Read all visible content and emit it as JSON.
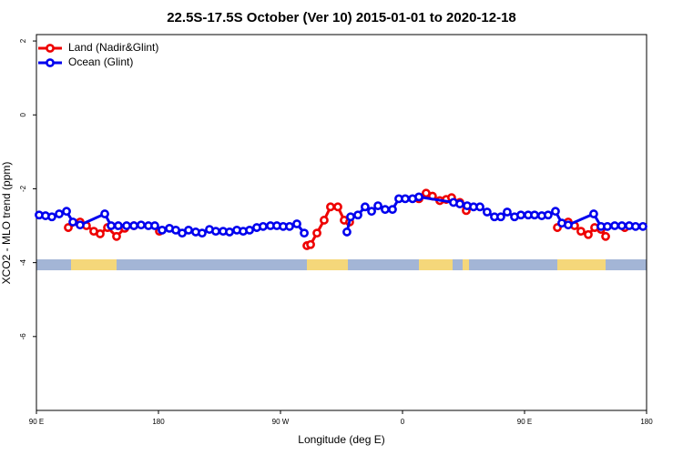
{
  "chart_data": {
    "type": "line",
    "title": "22.5S-17.5S October (Ver 10)   2015-01-01 to 2020-12-18",
    "x_label": "Longitude (deg E)",
    "y_label": "XCO2 - MLO trend (ppm)",
    "xlim": [
      90,
      540
    ],
    "xticks": [
      {
        "value": 90,
        "label": "90 E"
      },
      {
        "value": 180,
        "label": "180"
      },
      {
        "value": 270,
        "label": "90 W"
      },
      {
        "value": 360,
        "label": "0"
      },
      {
        "value": 450,
        "label": "90 E"
      },
      {
        "value": 540,
        "label": "180"
      }
    ],
    "ylim": [
      -8,
      2.1
    ],
    "yticks": [
      2,
      0,
      -2,
      -4,
      -6
    ],
    "legend": "top-left",
    "series": [
      {
        "name": "Land (Nadir&Glint)",
        "color": "#ee0000",
        "x": [
          113.5,
          122.2,
          126.9,
          132.3,
          137,
          142.4,
          149.1,
          155.1,
          161.9,
          null,
          180.7,
          null,
          289.5,
          292.2,
          296.9,
          302.2,
          306.9,
          312.3,
          317,
          321,
          null,
          372.1,
          377.4,
          382.1,
          387.5,
          392.2,
          396.2,
          402.3,
          407,
          null,
          474.2,
          482.2,
          486.9,
          491.6,
          497,
          501.7,
          506.4,
          509.8,
          null,
          523.9
        ],
        "values": [
          -3.05,
          -2.9,
          -3.0,
          -3.15,
          -3.22,
          -3.05,
          -3.29,
          -3.07,
          -3.0,
          null,
          -3.15,
          null,
          -3.54,
          -3.51,
          -3.2,
          -2.85,
          -2.49,
          -2.49,
          -2.85,
          -2.9,
          null,
          -2.27,
          -2.12,
          -2.2,
          -2.32,
          -2.29,
          -2.24,
          -2.37,
          -2.59,
          null,
          -3.05,
          -2.9,
          -3.0,
          -3.15,
          -3.24,
          -3.05,
          -3.1,
          -3.29,
          null,
          -3.05
        ]
      },
      {
        "name": "Ocean (Glint)",
        "color": "#0000ee",
        "x": [
          92,
          96.7,
          101.4,
          106.8,
          112.2,
          116.9,
          122.2,
          140.4,
          145.1,
          150.4,
          156.5,
          161.9,
          167.2,
          172.6,
          177.3,
          182.7,
          188.1,
          192.8,
          197.5,
          202.2,
          207.5,
          212.2,
          217.6,
          222.3,
          227.7,
          232.4,
          237.8,
          242.5,
          247.2,
          252.5,
          257.2,
          262.6,
          267.3,
          272,
          276.7,
          282.1,
          287.5,
          null,
          319,
          321.7,
          327.1,
          332.4,
          337.2,
          341.9,
          347.2,
          352.6,
          357.3,
          362,
          367.4,
          372.1,
          397.6,
          402.3,
          407.7,
          412.4,
          417.1,
          422.4,
          427.8,
          432.5,
          437.2,
          442.6,
          447.3,
          452.7,
          457.4,
          462.7,
          467.4,
          472.8,
          477.5,
          482.2,
          501,
          506.4,
          511.1,
          516.5,
          521.8,
          527.2,
          531.9,
          537.3
        ],
        "values": [
          -2.71,
          -2.73,
          -2.76,
          -2.68,
          -2.61,
          -2.9,
          -2.98,
          -2.68,
          -3.0,
          -3.0,
          -3.0,
          -3.0,
          -2.98,
          -3.0,
          -3.0,
          -3.12,
          -3.07,
          -3.12,
          -3.2,
          -3.12,
          -3.17,
          -3.2,
          -3.1,
          -3.15,
          -3.15,
          -3.17,
          -3.12,
          -3.15,
          -3.12,
          -3.05,
          -3.02,
          -3.0,
          -3.0,
          -3.02,
          -3.02,
          -2.95,
          -3.2,
          null,
          -3.17,
          -2.76,
          -2.71,
          -2.49,
          -2.61,
          -2.46,
          -2.56,
          -2.56,
          -2.27,
          -2.27,
          -2.27,
          -2.22,
          -2.37,
          -2.41,
          -2.46,
          -2.49,
          -2.49,
          -2.63,
          -2.76,
          -2.76,
          -2.63,
          -2.76,
          -2.71,
          -2.71,
          -2.71,
          -2.73,
          -2.71,
          -2.61,
          -2.93,
          -2.98,
          -2.68,
          -3.02,
          -3.02,
          -3.0,
          -3.0,
          -3.0,
          -3.02,
          -3.02
        ]
      }
    ]
  }
}
